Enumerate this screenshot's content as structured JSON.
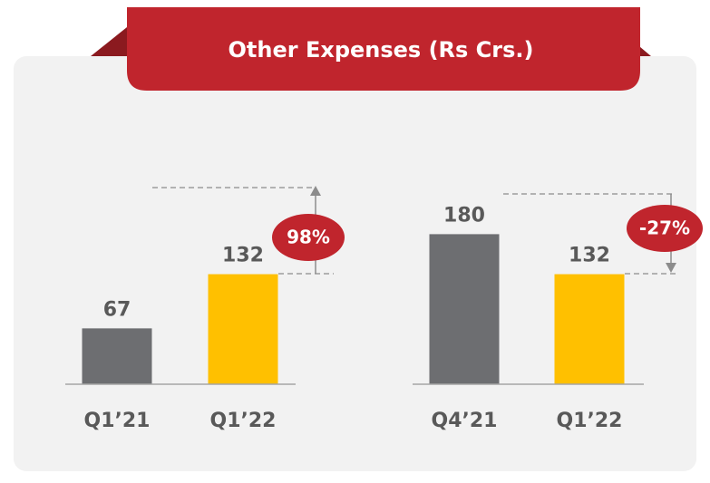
{
  "title": "Other Expenses (Rs Crs.)",
  "chart_data": [
    {
      "type": "bar",
      "categories": [
        "Q1’21",
        "Q1’22"
      ],
      "values": [
        67,
        132
      ],
      "colors": [
        "#6d6e71",
        "#ffc000"
      ],
      "annotation": "98%"
    },
    {
      "type": "bar",
      "categories": [
        "Q4’21",
        "Q1’22"
      ],
      "values": [
        180,
        132
      ],
      "colors": [
        "#6d6e71",
        "#ffc000"
      ],
      "annotation": "-27%"
    }
  ]
}
